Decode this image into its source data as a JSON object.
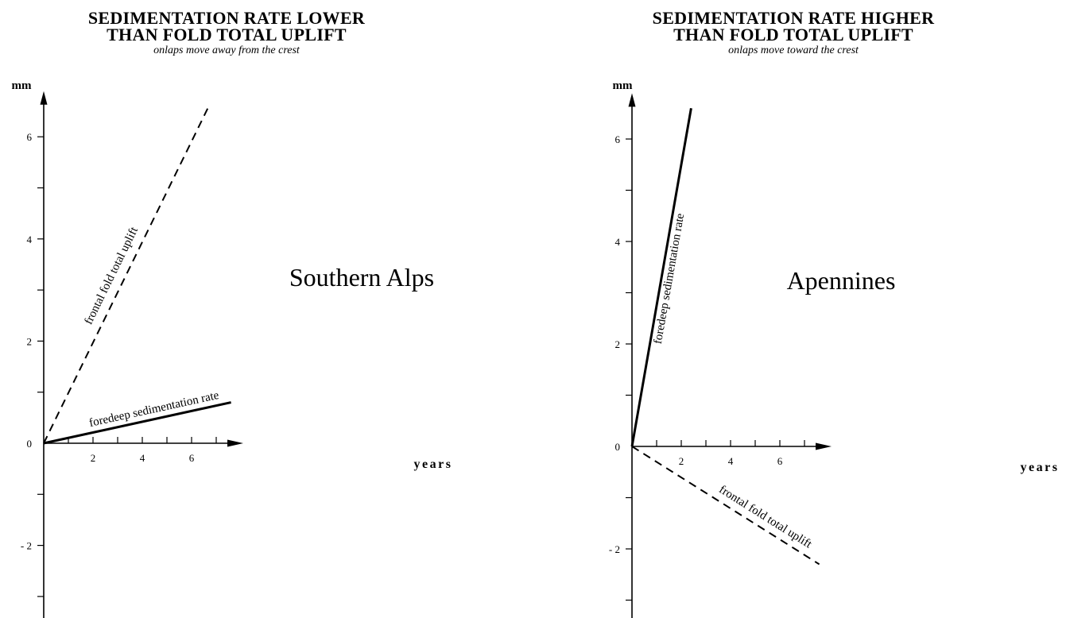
{
  "chart_data": [
    {
      "type": "line",
      "title": "SEDIMENTATION RATE LOWER THAN FOLD TOTAL UPLIFT",
      "title_lines": [
        "SEDIMENTATION RATE LOWER",
        "THAN FOLD TOTAL UPLIFT"
      ],
      "subtitle": "onlaps move away from the crest",
      "annotation": "Southern Alps",
      "xlabel": "years",
      "ylabel": "mm",
      "xlim": [
        0,
        8
      ],
      "ylim": [
        -3.5,
        6.8
      ],
      "xticks_labeled": [
        2,
        4,
        6
      ],
      "yticks_labeled": [
        6,
        4,
        2,
        0,
        -2
      ],
      "ytick_labels": [
        "6",
        "4",
        "2",
        "0",
        "- 2"
      ],
      "grid": false,
      "series": [
        {
          "name": "frontal fold total uplift",
          "style": "dashed",
          "x": [
            0,
            6.7
          ],
          "y": [
            0,
            6.6
          ]
        },
        {
          "name": "foredeep sedimentation rate",
          "style": "solid",
          "x": [
            0,
            7.6
          ],
          "y": [
            0,
            0.8
          ]
        }
      ]
    },
    {
      "type": "line",
      "title": "SEDIMENTATION RATE HIGHER THAN FOLD TOTAL UPLIFT",
      "title_lines": [
        "SEDIMENTATION RATE HIGHER",
        "THAN FOLD TOTAL UPLIFT"
      ],
      "subtitle": "onlaps move toward the crest",
      "annotation": "Apennines",
      "xlabel": "years",
      "ylabel": "mm",
      "xlim": [
        0,
        8
      ],
      "ylim": [
        -3.5,
        6.8
      ],
      "xticks_labeled": [
        2,
        4,
        6
      ],
      "yticks_labeled": [
        6,
        4,
        2,
        0,
        -2
      ],
      "ytick_labels": [
        "6",
        "4",
        "2",
        "0",
        "- 2"
      ],
      "grid": false,
      "series": [
        {
          "name": "foredeep sedimentation rate",
          "style": "solid",
          "x": [
            0,
            2.4
          ],
          "y": [
            0,
            6.6
          ]
        },
        {
          "name": "frontal fold total uplift",
          "style": "dashed",
          "x": [
            0,
            7.6
          ],
          "y": [
            0,
            -2.3
          ]
        }
      ]
    }
  ]
}
